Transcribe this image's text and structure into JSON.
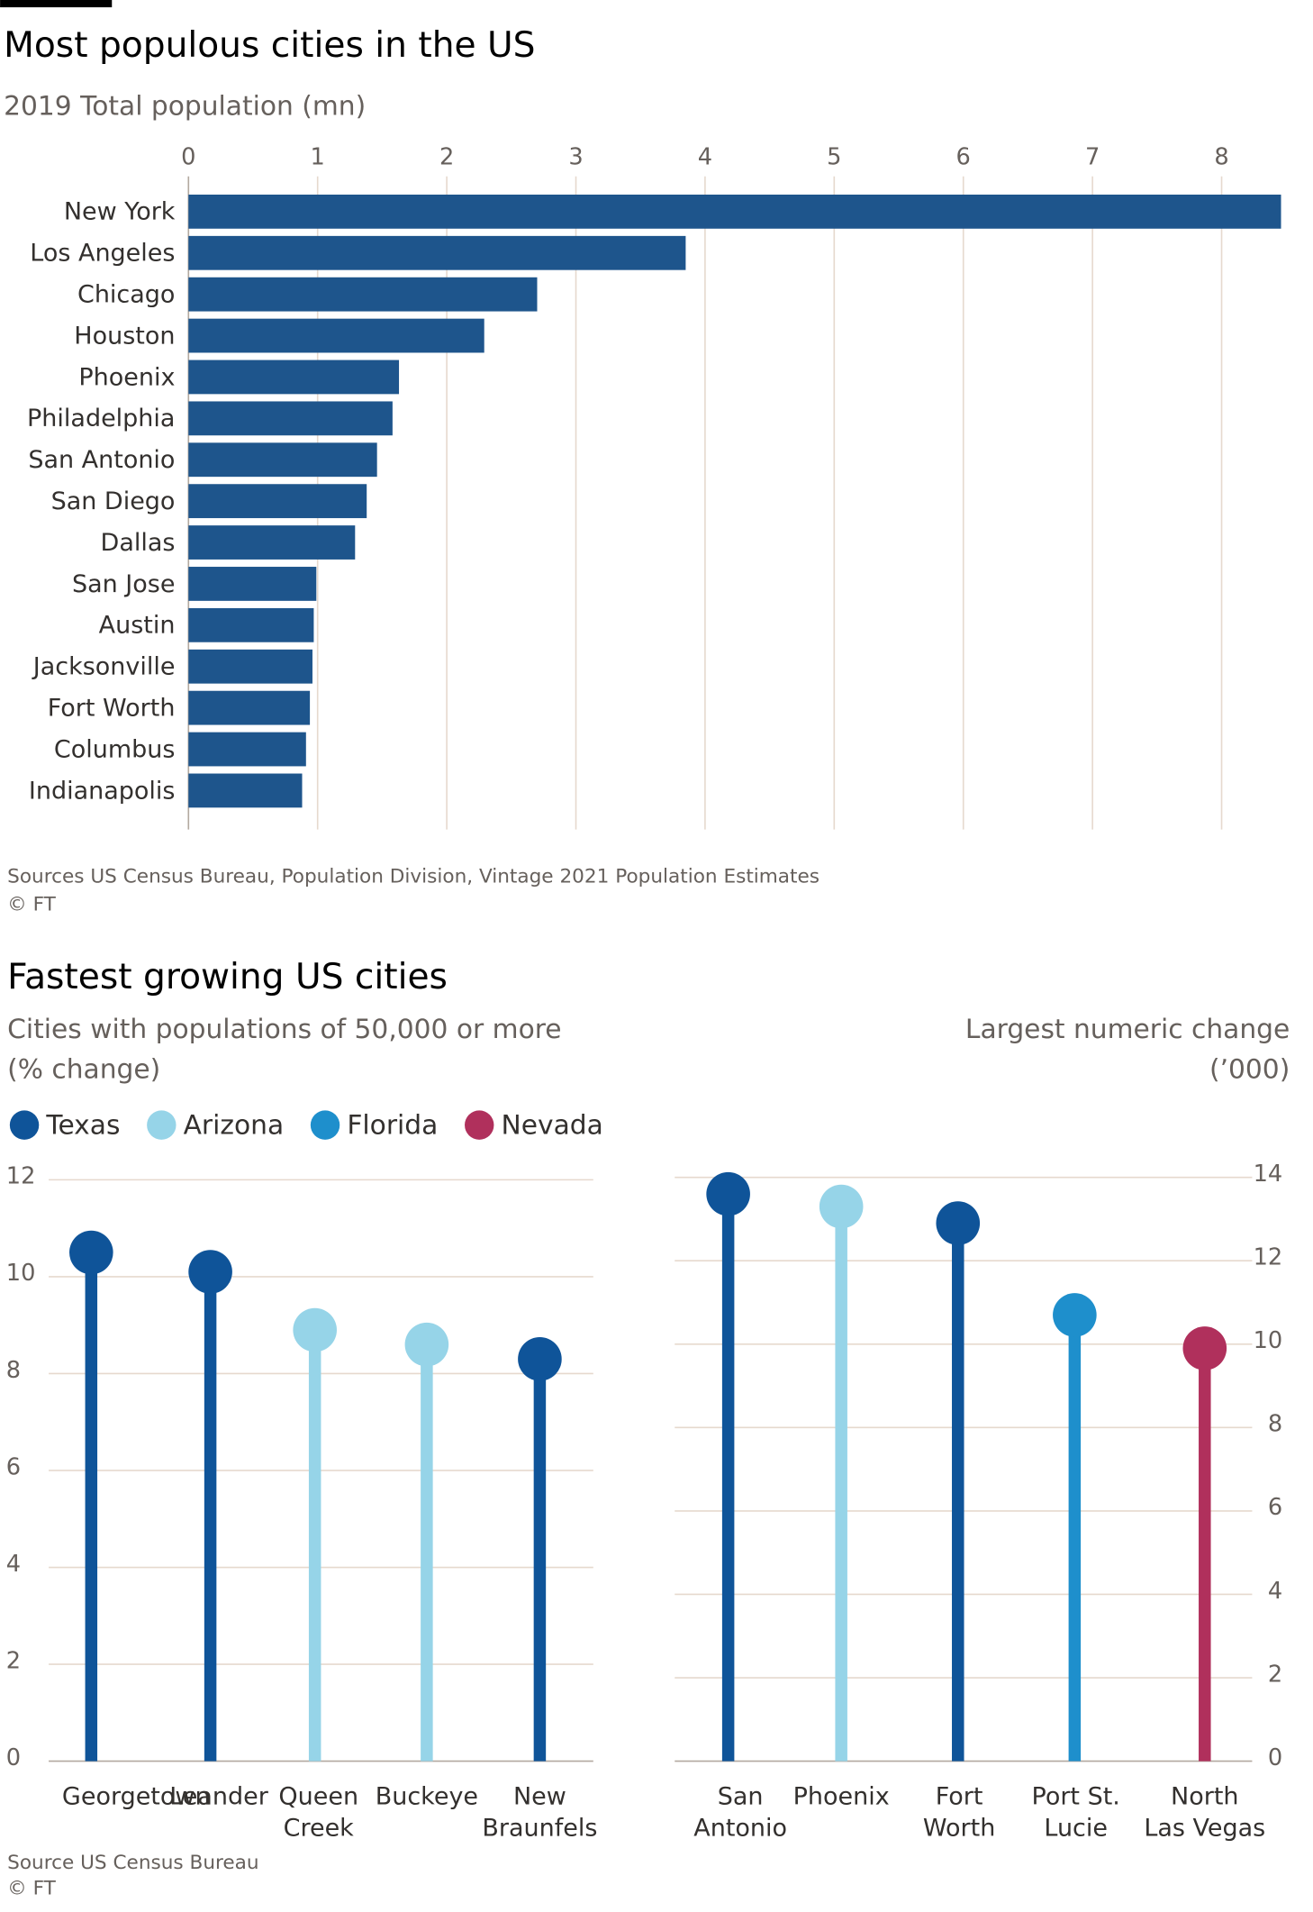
{
  "chart_data": [
    {
      "type": "bar",
      "orientation": "horizontal",
      "title": "Most populous cities in the US",
      "subtitle": "2019 Total population (mn)",
      "categories": [
        "New York",
        "Los Angeles",
        "Chicago",
        "Houston",
        "Phoenix",
        "Philadelphia",
        "San Antonio",
        "San Diego",
        "Dallas",
        "San Jose",
        "Austin",
        "Jacksonville",
        "Fort Worth",
        "Columbus",
        "Indianapolis"
      ],
      "values": [
        8.46,
        3.85,
        2.7,
        2.29,
        1.63,
        1.58,
        1.46,
        1.38,
        1.29,
        0.99,
        0.97,
        0.96,
        0.94,
        0.91,
        0.88
      ],
      "color": "#1e558c",
      "xlim": [
        0,
        8.5
      ],
      "xticks": [
        0,
        1,
        2,
        3,
        4,
        5,
        6,
        7,
        8
      ],
      "grid": true,
      "source": "Sources US Census Bureau, Population Division, Vintage 2021 Population Estimates",
      "copyright": "© FT"
    },
    {
      "type": "lollipop",
      "title": "Fastest growing US cities",
      "subtitle": [
        "Cities with populations of 50,000 or more",
        "(% change)"
      ],
      "legend": [
        {
          "name": "Texas",
          "color": "#0f5499"
        },
        {
          "name": "Arizona",
          "color": "#96d4e8"
        },
        {
          "name": "Florida",
          "color": "#1e8fcc"
        },
        {
          "name": "Nevada",
          "color": "#b0305c"
        }
      ],
      "categories": [
        [
          "Georgetown"
        ],
        [
          "Leander"
        ],
        [
          "Queen",
          "Creek"
        ],
        [
          "Buckeye"
        ],
        [
          "New",
          "Braunfels"
        ]
      ],
      "values": [
        10.5,
        10.1,
        8.9,
        8.6,
        8.3
      ],
      "colors": [
        "#0f5499",
        "#0f5499",
        "#96d4e8",
        "#96d4e8",
        "#0f5499"
      ],
      "ylim": [
        0,
        12
      ],
      "yticks": [
        0,
        2,
        4,
        6,
        8,
        10,
        12
      ],
      "y_axis_side": "left",
      "grid": true,
      "source": "Source US Census Bureau",
      "copyright": "© FT"
    },
    {
      "type": "lollipop",
      "subtitle": [
        "Largest numeric change",
        "(’000)"
      ],
      "categories": [
        [
          "San",
          "Antonio"
        ],
        [
          "Phoenix"
        ],
        [
          "Fort",
          "Worth"
        ],
        [
          "Port St.",
          "Lucie"
        ],
        [
          "North",
          "Las Vegas"
        ]
      ],
      "values": [
        13.6,
        13.3,
        12.9,
        10.7,
        9.9
      ],
      "colors": [
        "#0f5499",
        "#96d4e8",
        "#0f5499",
        "#1e8fcc",
        "#b0305c"
      ],
      "ylim": [
        0,
        14
      ],
      "yticks": [
        0,
        2,
        4,
        6,
        8,
        10,
        12,
        14
      ],
      "y_axis_side": "right",
      "grid": true
    }
  ]
}
